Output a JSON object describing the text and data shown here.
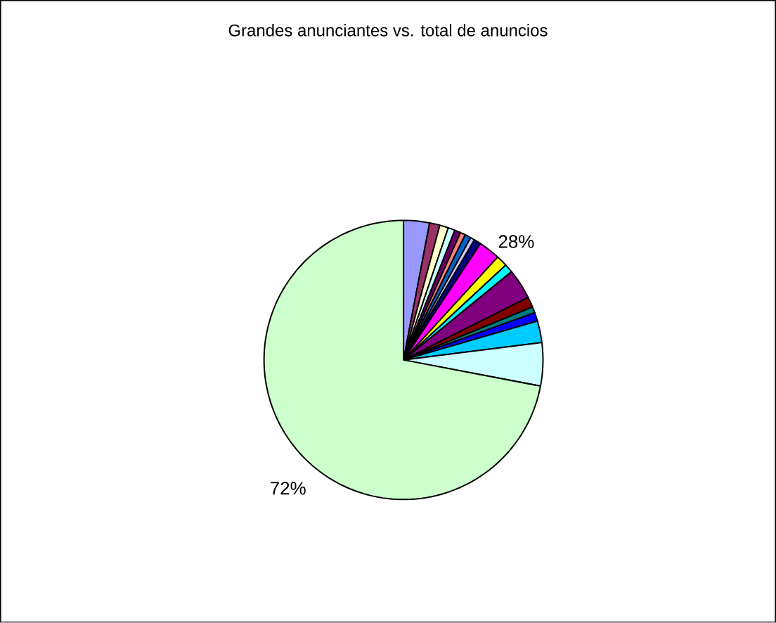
{
  "chart_data": {
    "type": "pie",
    "title": "Grandes anunciantes vs. total de anuncios",
    "categories": [
      null,
      null,
      null,
      null,
      null,
      null,
      null,
      null,
      null,
      null,
      null,
      null,
      null,
      null,
      null,
      null,
      null,
      null,
      null
    ],
    "values": [
      3,
      1.2,
      1,
      0.8,
      0.7,
      0.6,
      0.7,
      0.5,
      0.8,
      2.5,
      1.3,
      1,
      3.5,
      1.2,
      0.7,
      1,
      2.5,
      5,
      72
    ],
    "colors": [
      "#9999ff",
      "#993366",
      "#ffffcc",
      "#ccffff",
      "#660066",
      "#ff8080",
      "#0066cc",
      "#ccccff",
      "#000080",
      "#ff00ff",
      "#ffff00",
      "#00ffff",
      "#800080",
      "#800000",
      "#008080",
      "#0000ff",
      "#00ccff",
      "#ccffff",
      "#ccffcc"
    ],
    "value_labels": [
      null,
      null,
      null,
      null,
      null,
      null,
      null,
      null,
      null,
      null,
      null,
      null,
      null,
      null,
      null,
      null,
      null,
      null,
      "72%"
    ],
    "annotations": [
      "28%"
    ]
  }
}
